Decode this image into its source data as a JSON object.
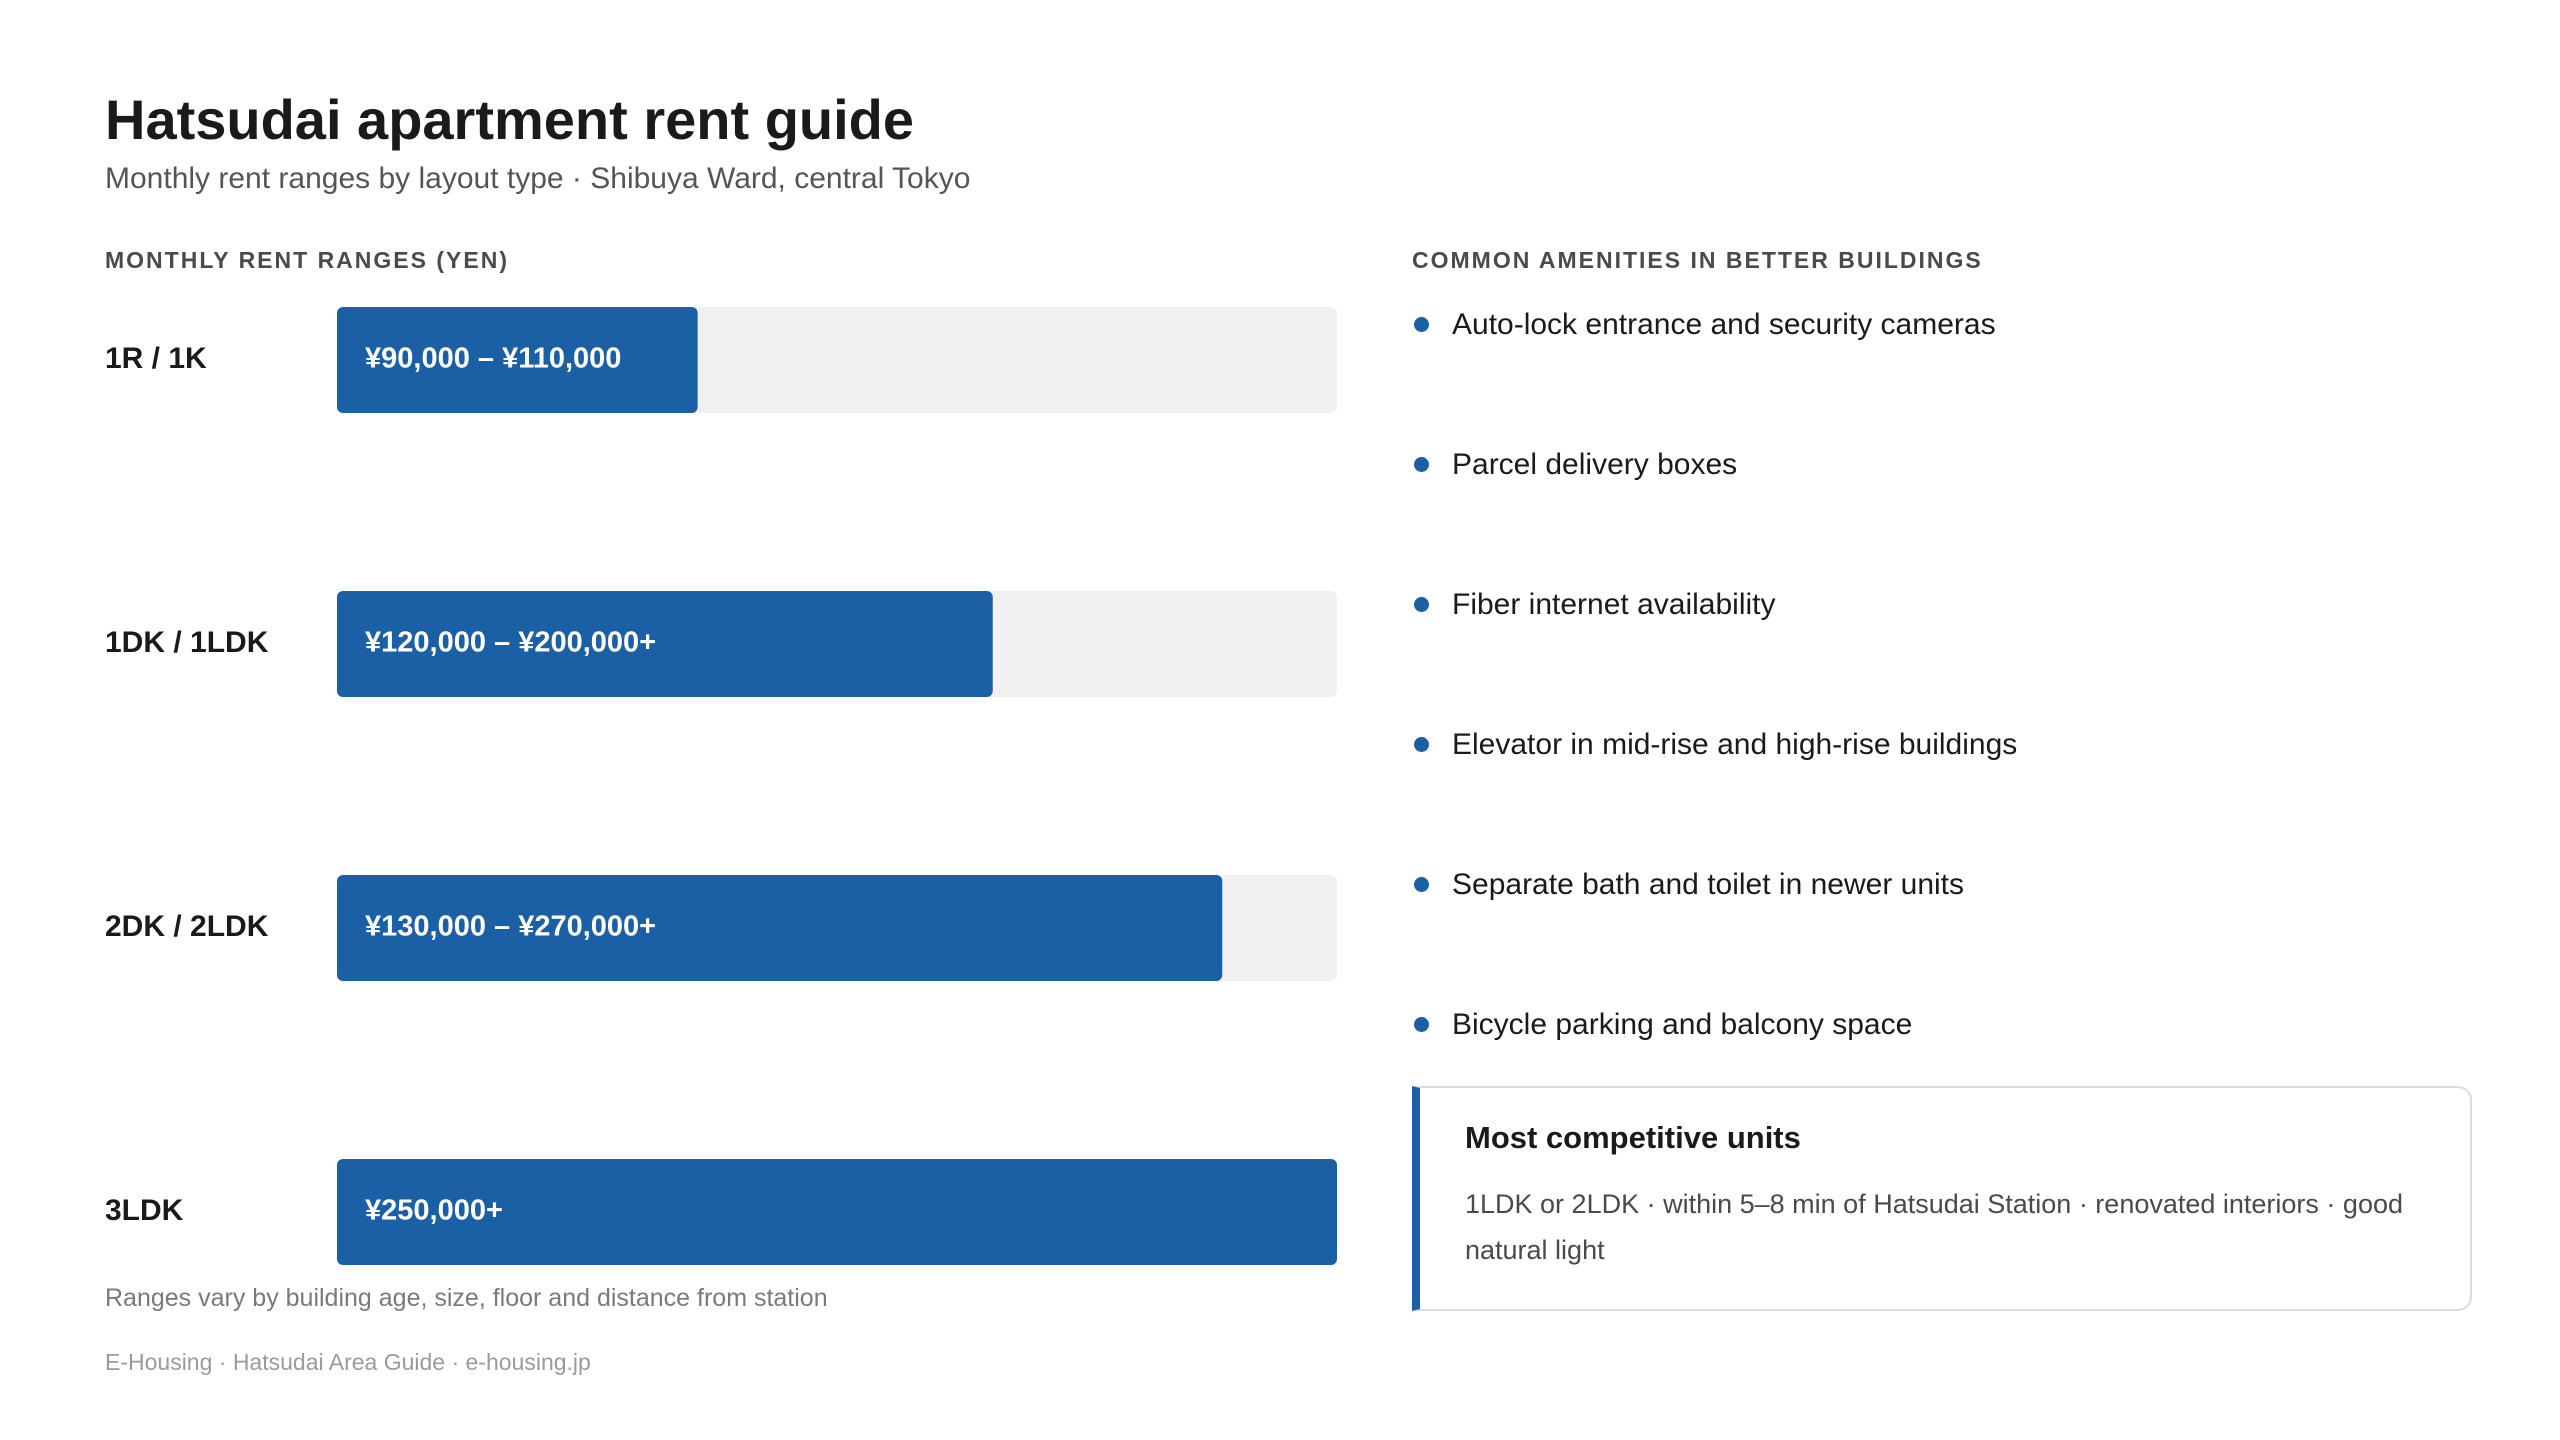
{
  "header": {
    "title": "Hatsudai apartment rent guide",
    "subtitle": "Monthly rent ranges by layout type · Shibuya Ward, central Tokyo"
  },
  "chart_section": {
    "label": "MONTHLY RENT RANGES (YEN)",
    "note": "Ranges vary by building age, size, floor and distance from station"
  },
  "chart_data": {
    "type": "bar",
    "orientation": "horizontal",
    "categories": [
      "1R / 1K",
      "1DK / 1LDK",
      "2DK / 2LDK",
      "3LDK"
    ],
    "values": [
      110000,
      200000,
      270000,
      320000
    ],
    "ranges": [
      {
        "low": 90000,
        "high": 110000
      },
      {
        "low": 120000,
        "high": 200000
      },
      {
        "low": 130000,
        "high": 270000
      },
      {
        "low": 250000,
        "high": null
      }
    ],
    "bar_labels": [
      "¥90,000 – ¥110,000",
      "¥120,000 – ¥200,000+",
      "¥130,000 – ¥270,000+",
      "¥250,000+"
    ],
    "xlim": [
      0,
      305000
    ],
    "bar_color": "#1b5fa5",
    "track_color": "#f0f0f0",
    "grid": false
  },
  "amenities_section": {
    "label": "COMMON AMENITIES IN BETTER BUILDINGS",
    "items": [
      "Auto-lock entrance and security cameras",
      "Parcel delivery boxes",
      "Fiber internet availability",
      "Elevator in mid-rise and high-rise buildings",
      "Separate bath and toilet in newer units",
      "Bicycle parking and balcony space"
    ],
    "bullet_color": "#1b5fa5"
  },
  "callout": {
    "title": "Most competitive units",
    "body": "1LDK or 2LDK · within 5–8 min of Hatsudai Station · renovated interiors · good natural light",
    "accent_color": "#1b5fa5"
  },
  "footer": {
    "text": "E-Housing · Hatsudai Area Guide · e-housing.jp"
  }
}
